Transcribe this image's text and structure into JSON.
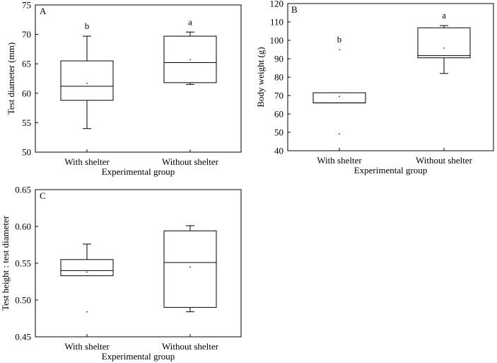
{
  "chart_data": [
    {
      "type": "box",
      "panel": "A",
      "xlabel": "Experimental group",
      "ylabel": "Test diameter (mm)",
      "ylim": [
        50,
        75
      ],
      "yticks": [
        50,
        55,
        60,
        65,
        70,
        75
      ],
      "categories": [
        "With shelter",
        "Without shelter"
      ],
      "boxes": [
        {
          "min": 54.0,
          "q1": 58.8,
          "median": 61.2,
          "q3": 65.5,
          "max": 69.7,
          "mean": 61.7,
          "outliers": [],
          "letter": "b"
        },
        {
          "min": 61.5,
          "q1": 61.8,
          "median": 65.2,
          "q3": 69.7,
          "max": 70.4,
          "mean": 65.7,
          "outliers": [],
          "letter": "a"
        }
      ]
    },
    {
      "type": "box",
      "panel": "B",
      "xlabel": "Experimental group",
      "ylabel": "Body weight (g)",
      "ylim": [
        40,
        120
      ],
      "yticks": [
        40,
        50,
        60,
        70,
        80,
        90,
        100,
        110,
        120
      ],
      "categories": [
        "With shelter",
        "Without shelter"
      ],
      "boxes": [
        {
          "min": 66.0,
          "q1": 66.0,
          "median": 66.0,
          "q3": 71.5,
          "max": 71.5,
          "mean": 69.5,
          "outliers": [
            95.0,
            49.2
          ],
          "letter": "b"
        },
        {
          "min": 82.0,
          "q1": 90.5,
          "median": 91.7,
          "q3": 106.8,
          "max": 108.0,
          "mean": 95.8,
          "outliers": [],
          "letter": "a"
        }
      ]
    },
    {
      "type": "box",
      "panel": "C",
      "xlabel": "Experimental group",
      "ylabel": "Test height : test diameter",
      "ylim": [
        0.45,
        0.65
      ],
      "yticks": [
        "0.45",
        "0.50",
        "0.55",
        "0.60",
        "0.65"
      ],
      "categories": [
        "With shelter",
        "Without shelter"
      ],
      "boxes": [
        {
          "min": 0.533,
          "q1": 0.533,
          "median": 0.54,
          "q3": 0.555,
          "max": 0.576,
          "mean": 0.538,
          "outliers": [
            0.484
          ],
          "letter": ""
        },
        {
          "min": 0.484,
          "q1": 0.49,
          "median": 0.551,
          "q3": 0.594,
          "max": 0.601,
          "mean": 0.545,
          "outliers": [],
          "letter": ""
        }
      ]
    }
  ]
}
